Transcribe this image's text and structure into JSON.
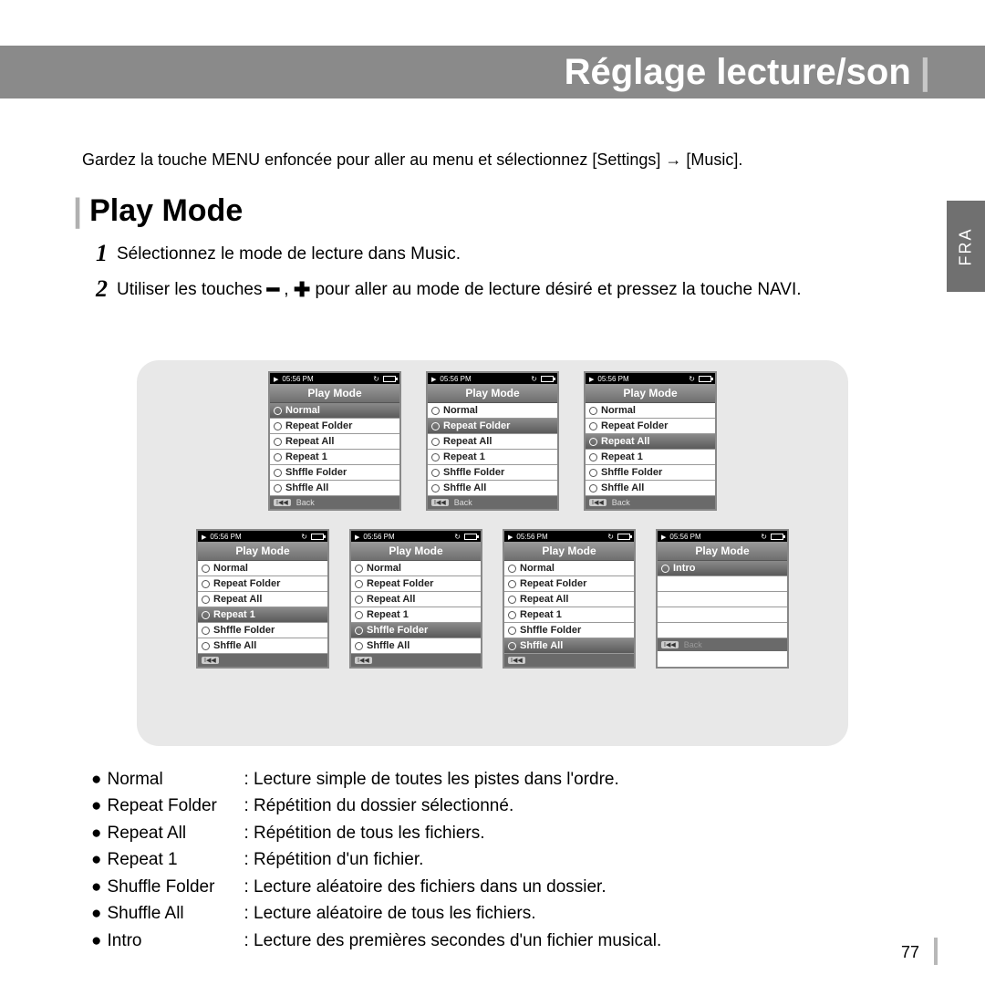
{
  "header": {
    "title": "Réglage lecture/son"
  },
  "sideTab": "FRA",
  "intro": "Gardez la touche MENU enfoncée pour aller au menu et sélectionnez [Settings] → [Music].",
  "section": {
    "title": "Play Mode"
  },
  "steps": [
    {
      "num": "1",
      "text": "Sélectionnez le mode de lecture dans Music."
    },
    {
      "num": "2",
      "textA": "Utiliser les touches ",
      "textB": " pour aller au mode de lecture désiré et pressez la touche NAVI."
    }
  ],
  "screen": {
    "statusTime": "05:56 PM",
    "title": "Play Mode",
    "footerBack": "Back",
    "menus": [
      {
        "items": [
          "Normal",
          "Repeat Folder",
          "Repeat All",
          "Repeat 1",
          "Shffle Folder",
          "Shffle All"
        ],
        "selected": 0,
        "showBack": true
      },
      {
        "items": [
          "Normal",
          "Repeat Folder",
          "Repeat All",
          "Repeat 1",
          "Shffle Folder",
          "Shffle All"
        ],
        "selected": 1,
        "showBack": true
      },
      {
        "items": [
          "Normal",
          "Repeat Folder",
          "Repeat All",
          "Repeat 1",
          "Shffle Folder",
          "Shffle All"
        ],
        "selected": 2,
        "showBack": true
      },
      {
        "items": [
          "Normal",
          "Repeat Folder",
          "Repeat All",
          "Repeat 1",
          "Shffle Folder",
          "Shffle All"
        ],
        "selected": 3,
        "showBack": false
      },
      {
        "items": [
          "Normal",
          "Repeat Folder",
          "Repeat All",
          "Repeat 1",
          "Shffle Folder",
          "Shffle All"
        ],
        "selected": 4,
        "showBack": false
      },
      {
        "items": [
          "Normal",
          "Repeat Folder",
          "Repeat All",
          "Repeat 1",
          "Shffle Folder",
          "Shffle All"
        ],
        "selected": 5,
        "showBack": false
      },
      {
        "items": [
          "Intro",
          "",
          "",
          "",
          ""
        ],
        "selected": 0,
        "showBack": false,
        "backDim": true
      }
    ]
  },
  "descriptions": [
    {
      "term": "Normal",
      "text": ": Lecture simple de toutes les pistes dans l'ordre."
    },
    {
      "term": "Repeat Folder",
      "text": ": Répétition du dossier sélectionné."
    },
    {
      "term": "Repeat All",
      "text": ": Répétition de tous les fichiers."
    },
    {
      "term": "Repeat 1",
      "text": ": Répétition d'un fichier."
    },
    {
      "term": "Shuffle Folder",
      "text": ": Lecture aléatoire des fichiers dans un dossier."
    },
    {
      "term": "Shuffle All",
      "text": ": Lecture aléatoire de tous les fichiers."
    },
    {
      "term": "Intro",
      "text": ": Lecture des premières secondes d'un fichier musical."
    }
  ],
  "pageNumber": "77"
}
